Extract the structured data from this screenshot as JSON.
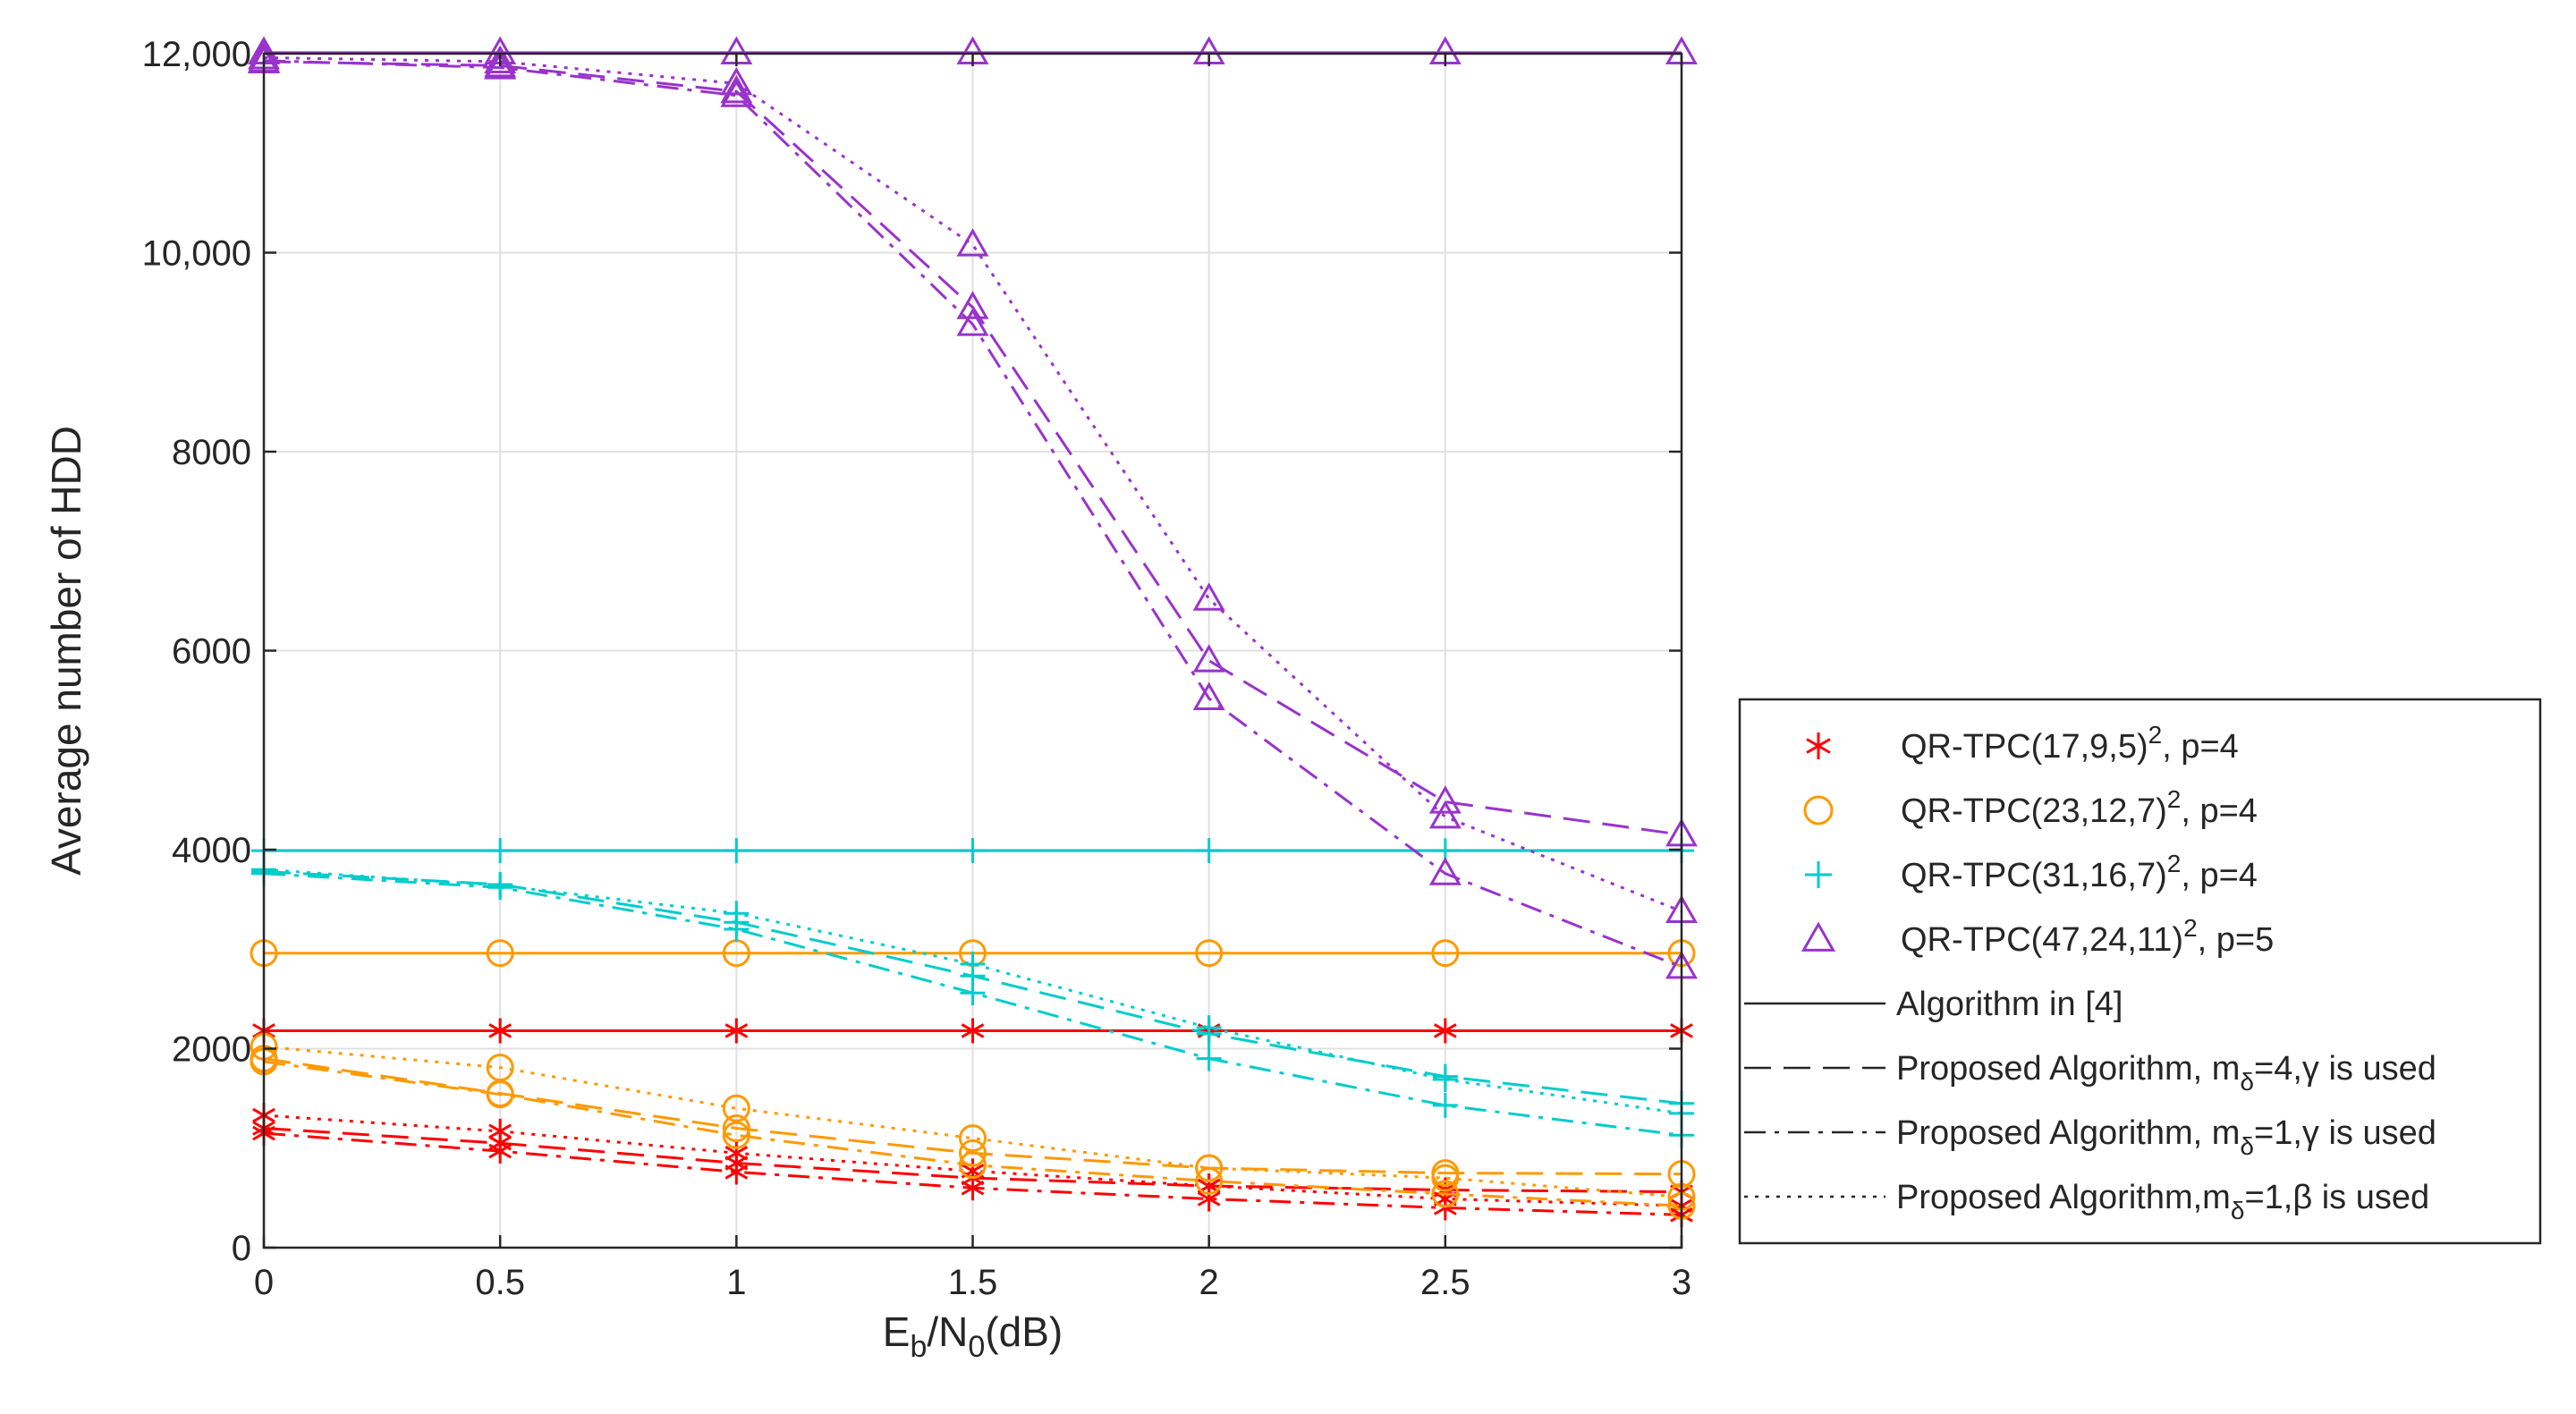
{
  "chart_data": {
    "type": "line",
    "xlabel_main": "E",
    "xlabel_sub1": "b",
    "xlabel_mid": "/N",
    "xlabel_sub2": "0",
    "xlabel_tail": "(dB)",
    "ylabel": "Average number of HDD",
    "x": [
      0,
      0.5,
      1,
      1.5,
      2,
      2.5,
      3
    ],
    "xlim": [
      0,
      3
    ],
    "ylim": [
      0,
      12000
    ],
    "xticks": [
      0,
      0.5,
      1,
      1.5,
      2,
      2.5,
      3
    ],
    "xtick_labels": [
      "0",
      "0.5",
      "1",
      "1.5",
      "2",
      "2.5",
      "3"
    ],
    "yticks": [
      0,
      2000,
      4000,
      6000,
      8000,
      10000,
      12000
    ],
    "ytick_labels": [
      "0",
      "2000",
      "4000",
      "6000",
      "8000",
      "10,000",
      "12,000"
    ],
    "grid": true,
    "legend_position": "right",
    "codes": [
      {
        "id": "c17",
        "color": "#ff0000",
        "marker": "asterisk"
      },
      {
        "id": "c23",
        "color": "#ff9900",
        "marker": "circle"
      },
      {
        "id": "c31",
        "color": "#00cccc",
        "marker": "plus"
      },
      {
        "id": "c47",
        "color": "#9933cc",
        "marker": "triangle"
      }
    ],
    "series": [
      {
        "code": "c17",
        "style": "solid",
        "values": [
          2180,
          2180,
          2180,
          2180,
          2180,
          2180,
          2180
        ]
      },
      {
        "code": "c17",
        "style": "dashed",
        "values": [
          1200,
          1050,
          850,
          700,
          620,
          580,
          560
        ]
      },
      {
        "code": "c17",
        "style": "dashdot",
        "values": [
          1150,
          970,
          760,
          600,
          490,
          400,
          330
        ]
      },
      {
        "code": "c17",
        "style": "dotted",
        "values": [
          1330,
          1170,
          950,
          770,
          620,
          490,
          420
        ]
      },
      {
        "code": "c23",
        "style": "solid",
        "values": [
          2960,
          2960,
          2960,
          2960,
          2960,
          2960,
          2960
        ]
      },
      {
        "code": "c23",
        "style": "dashed",
        "values": [
          1900,
          1550,
          1200,
          950,
          800,
          750,
          740
        ]
      },
      {
        "code": "c23",
        "style": "dashdot",
        "values": [
          1870,
          1540,
          1130,
          830,
          670,
          540,
          420
        ]
      },
      {
        "code": "c23",
        "style": "dotted",
        "values": [
          2020,
          1810,
          1400,
          1100,
          800,
          700,
          510
        ]
      },
      {
        "code": "c31",
        "style": "solid",
        "values": [
          3990,
          3990,
          3990,
          3990,
          3990,
          3990,
          3990
        ]
      },
      {
        "code": "c31",
        "style": "dashed",
        "values": [
          3780,
          3650,
          3270,
          2730,
          2150,
          1720,
          1450
        ]
      },
      {
        "code": "c31",
        "style": "dashdot",
        "values": [
          3760,
          3620,
          3200,
          2560,
          1900,
          1430,
          1130
        ]
      },
      {
        "code": "c31",
        "style": "dotted",
        "values": [
          3800,
          3640,
          3360,
          2850,
          2210,
          1690,
          1350
        ]
      },
      {
        "code": "c47",
        "style": "solid",
        "values": [
          12010,
          12010,
          12010,
          12010,
          12010,
          12010,
          12010
        ]
      },
      {
        "code": "c47",
        "style": "dashed",
        "values": [
          11920,
          11880,
          11620,
          9450,
          5900,
          4480,
          4150
        ]
      },
      {
        "code": "c47",
        "style": "dashdot",
        "values": [
          11930,
          11860,
          11580,
          9280,
          5520,
          3760,
          2820
        ]
      },
      {
        "code": "c47",
        "style": "dotted",
        "values": [
          11960,
          11920,
          11700,
          10080,
          6520,
          4330,
          3380
        ]
      }
    ],
    "legend": {
      "entries": [
        {
          "kind": "code",
          "code": "c17",
          "text": "QR-TPC(17,9,5)",
          "sup": "2",
          "tail": ", p=4"
        },
        {
          "kind": "code",
          "code": "c23",
          "text": "QR-TPC(23,12,7)",
          "sup": "2",
          "tail": ", p=4"
        },
        {
          "kind": "code",
          "code": "c31",
          "text": "QR-TPC(31,16,7)",
          "sup": "2",
          "tail": ", p=4"
        },
        {
          "kind": "code",
          "code": "c47",
          "text": "QR-TPC(47,24,11)",
          "sup": "2",
          "tail": ", p=5"
        },
        {
          "kind": "style",
          "style": "solid",
          "text": "Algorithm in [4]"
        },
        {
          "kind": "style",
          "style": "dashed",
          "text": "Proposed Algorithm, m",
          "sub": "δ",
          "tail": "=4,γ is used"
        },
        {
          "kind": "style",
          "style": "dashdot",
          "text": "Proposed Algorithm, m",
          "sub": "δ",
          "tail": "=1,γ is used"
        },
        {
          "kind": "style",
          "style": "dotted",
          "text": "Proposed Algorithm,m",
          "sub": "δ",
          "tail": "=1,β is used"
        }
      ]
    }
  }
}
